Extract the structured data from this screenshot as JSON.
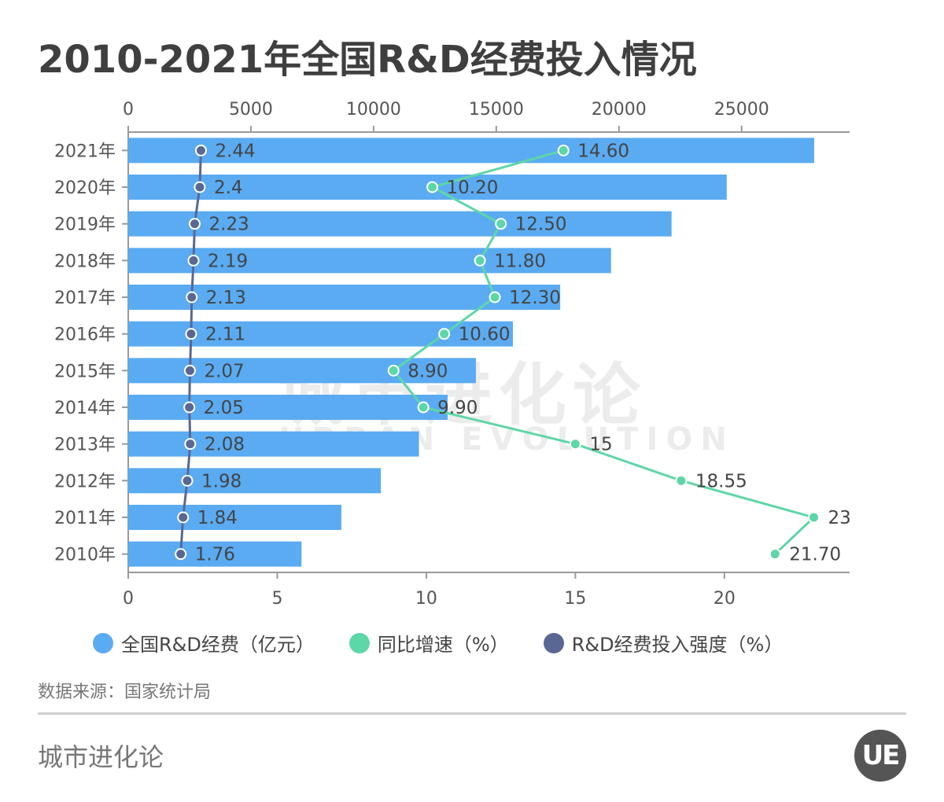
{
  "title": "2010-2021年全国R&D经费投入情况",
  "chart_data": {
    "type": "bar",
    "orientation": "horizontal",
    "categories": [
      "2021年",
      "2020年",
      "2019年",
      "2018年",
      "2017年",
      "2016年",
      "2015年",
      "2014年",
      "2013年",
      "2012年",
      "2011年",
      "2010年"
    ],
    "series": [
      {
        "name": "全国R&D经费（亿元）",
        "axis": "top",
        "type": "bar",
        "color": "#5aabf2",
        "values": [
          27956,
          24393,
          22144,
          19678,
          17606,
          15677,
          14170,
          13016,
          11847,
          10298,
          8687,
          7063
        ]
      },
      {
        "name": "同比增速（%）",
        "axis": "bottom",
        "type": "line",
        "color": "#5dd6a8",
        "values": [
          14.6,
          10.2,
          12.5,
          11.8,
          12.3,
          10.6,
          8.9,
          9.9,
          15,
          18.55,
          23,
          21.7
        ],
        "labels": [
          "14.60",
          "10.20",
          "12.50",
          "11.80",
          "12.30",
          "10.60",
          "8.90",
          "9.90",
          "15",
          "18.55",
          "23",
          "21.70"
        ]
      },
      {
        "name": "R&D经费投入强度（%）",
        "axis": "bottom",
        "type": "line",
        "color": "#5a6794",
        "values": [
          2.44,
          2.4,
          2.23,
          2.19,
          2.13,
          2.11,
          2.07,
          2.05,
          2.08,
          1.98,
          1.84,
          1.76
        ],
        "labels": [
          "2.44",
          "2.4",
          "2.23",
          "2.19",
          "2.13",
          "2.11",
          "2.07",
          "2.05",
          "2.08",
          "1.98",
          "1.84",
          "1.76"
        ]
      }
    ],
    "top_axis": {
      "ticks": [
        "0",
        "5000",
        "10000",
        "15000",
        "20000",
        "25000"
      ],
      "range": [
        0,
        29400
      ]
    },
    "bottom_axis": {
      "ticks": [
        "0",
        "5",
        "10",
        "15",
        "20"
      ],
      "range": [
        0,
        24.2
      ]
    },
    "legend_position": "bottom"
  },
  "source": "数据来源：国家统计局",
  "brand": "城市进化论",
  "watermark": {
    "cn": "城市进化论",
    "en": "URBAN EVOLUTION"
  },
  "logo_text": "UE"
}
